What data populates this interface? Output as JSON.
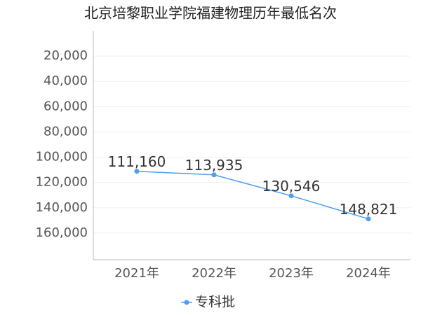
{
  "chart_data": {
    "type": "line",
    "title": "北京培黎职业学院福建物理历年最低名次",
    "categories": [
      "2021年",
      "2022年",
      "2023年",
      "2024年"
    ],
    "series": [
      {
        "name": "专科批",
        "color": "#4a9ff0",
        "values": [
          111160,
          113935,
          130546,
          148821
        ],
        "value_labels": [
          "111,160",
          "113,935",
          "130,546",
          "148,821"
        ]
      }
    ],
    "ylim": [
      0,
      180000
    ],
    "y_inverted": true,
    "yticks": [
      {
        "value": 20000,
        "label": "20,000"
      },
      {
        "value": 40000,
        "label": "40,000"
      },
      {
        "value": 60000,
        "label": "60,000"
      },
      {
        "value": 80000,
        "label": "80,000"
      },
      {
        "value": 100000,
        "label": "100,000"
      },
      {
        "value": 120000,
        "label": "120,000"
      },
      {
        "value": 140000,
        "label": "140,000"
      },
      {
        "value": 160000,
        "label": "160,000"
      }
    ],
    "grid": true,
    "legend": "bottom"
  }
}
